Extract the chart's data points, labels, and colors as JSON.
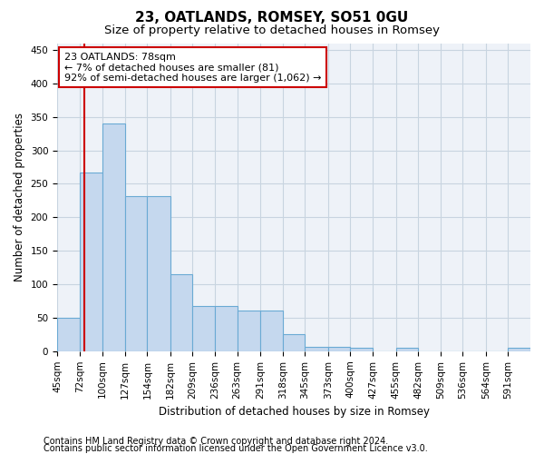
{
  "title": "23, OATLANDS, ROMSEY, SO51 0GU",
  "subtitle": "Size of property relative to detached houses in Romsey",
  "xlabel": "Distribution of detached houses by size in Romsey",
  "ylabel": "Number of detached properties",
  "bin_labels": [
    "45sqm",
    "72sqm",
    "100sqm",
    "127sqm",
    "154sqm",
    "182sqm",
    "209sqm",
    "236sqm",
    "263sqm",
    "291sqm",
    "318sqm",
    "345sqm",
    "373sqm",
    "400sqm",
    "427sqm",
    "455sqm",
    "482sqm",
    "509sqm",
    "536sqm",
    "564sqm",
    "591sqm"
  ],
  "bin_edges": [
    45,
    72,
    100,
    127,
    154,
    182,
    209,
    236,
    263,
    291,
    318,
    345,
    373,
    400,
    427,
    455,
    482,
    509,
    536,
    564,
    591,
    618
  ],
  "values": [
    50,
    267,
    340,
    232,
    232,
    115,
    67,
    67,
    61,
    61,
    25,
    7,
    7,
    5,
    0,
    5,
    0,
    0,
    0,
    0,
    5
  ],
  "bar_color": "#c5d8ee",
  "bar_edge_color": "#6aaad4",
  "grid_color": "#c8d4e0",
  "property_size": 78,
  "annotation_line1": "23 OATLANDS: 78sqm",
  "annotation_line2": "← 7% of detached houses are smaller (81)",
  "annotation_line3": "92% of semi-detached houses are larger (1,062) →",
  "annotation_box_color": "#ffffff",
  "annotation_border_color": "#cc0000",
  "vline_color": "#cc0000",
  "ylim": [
    0,
    460
  ],
  "yticks": [
    0,
    50,
    100,
    150,
    200,
    250,
    300,
    350,
    400,
    450
  ],
  "footer_line1": "Contains HM Land Registry data © Crown copyright and database right 2024.",
  "footer_line2": "Contains public sector information licensed under the Open Government Licence v3.0.",
  "background_color": "#ffffff",
  "plot_bg_color": "#eef2f8",
  "title_fontsize": 11,
  "subtitle_fontsize": 9.5,
  "axis_label_fontsize": 8.5,
  "tick_label_fontsize": 7.5,
  "annotation_fontsize": 8,
  "footer_fontsize": 7
}
